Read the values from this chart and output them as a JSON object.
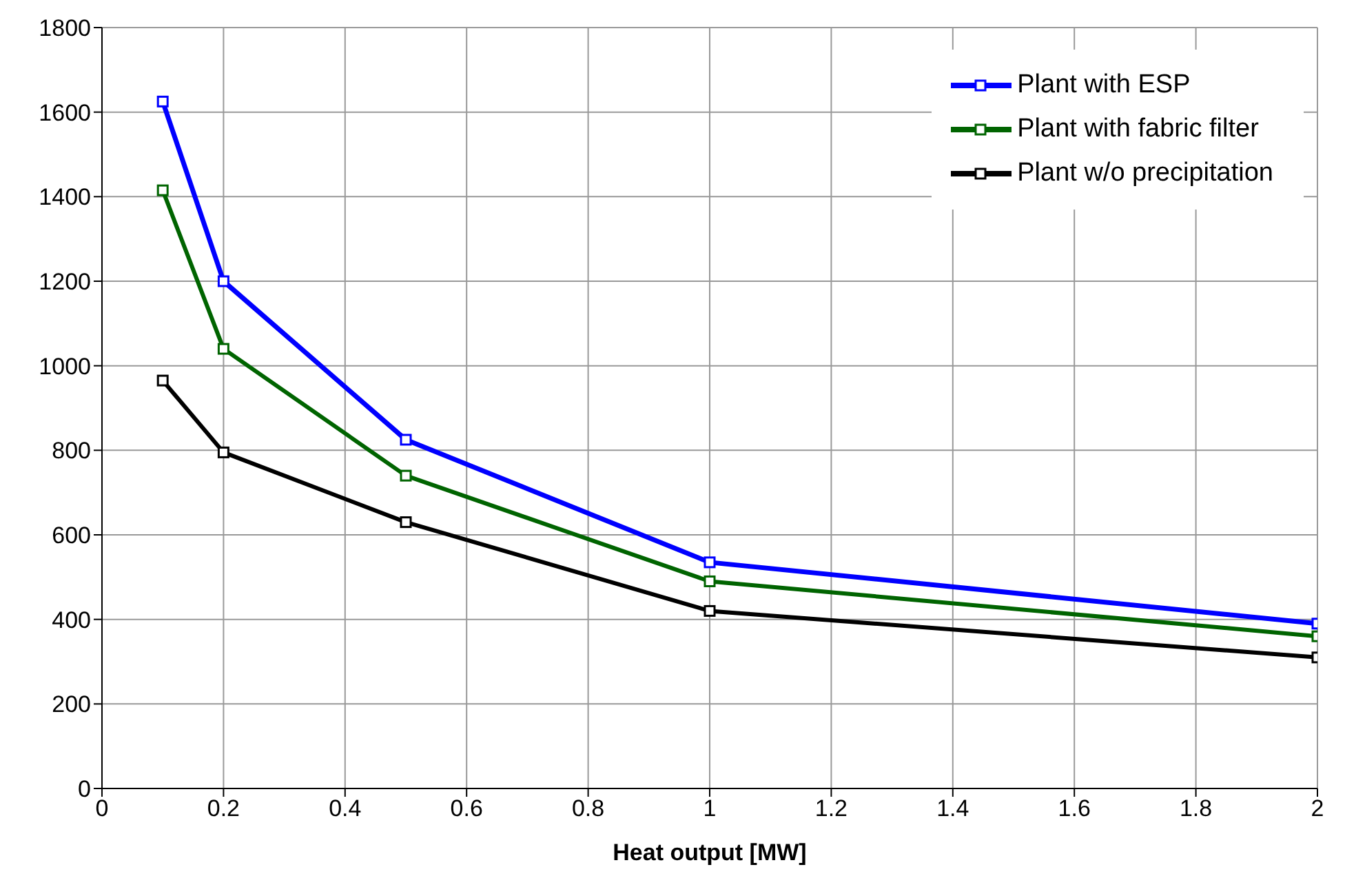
{
  "chart_data": {
    "type": "line",
    "xlabel": "Heat output  [MW]",
    "x": [
      0.1,
      0.2,
      0.5,
      1,
      2
    ],
    "series": [
      {
        "name": "Plant with ESP",
        "color": "#0000ff",
        "values": [
          1625,
          1200,
          825,
          535,
          390
        ]
      },
      {
        "name": "Plant with fabric filter",
        "color": "#006400",
        "values": [
          1415,
          1040,
          740,
          490,
          360
        ]
      },
      {
        "name": "Plant w/o precipitation",
        "color": "#000000",
        "values": [
          965,
          795,
          630,
          420,
          310
        ]
      }
    ],
    "xlim": [
      0,
      2
    ],
    "xticks": [
      0,
      0.2,
      0.4,
      0.6,
      0.8,
      1,
      1.2,
      1.4,
      1.6,
      1.8,
      2
    ],
    "ylim": [
      0,
      1800
    ],
    "yticks": [
      0,
      200,
      400,
      600,
      800,
      1000,
      1200,
      1400,
      1600,
      1800
    ],
    "grid": true,
    "legend": "top right",
    "marker": "square",
    "line_style": "solid"
  }
}
